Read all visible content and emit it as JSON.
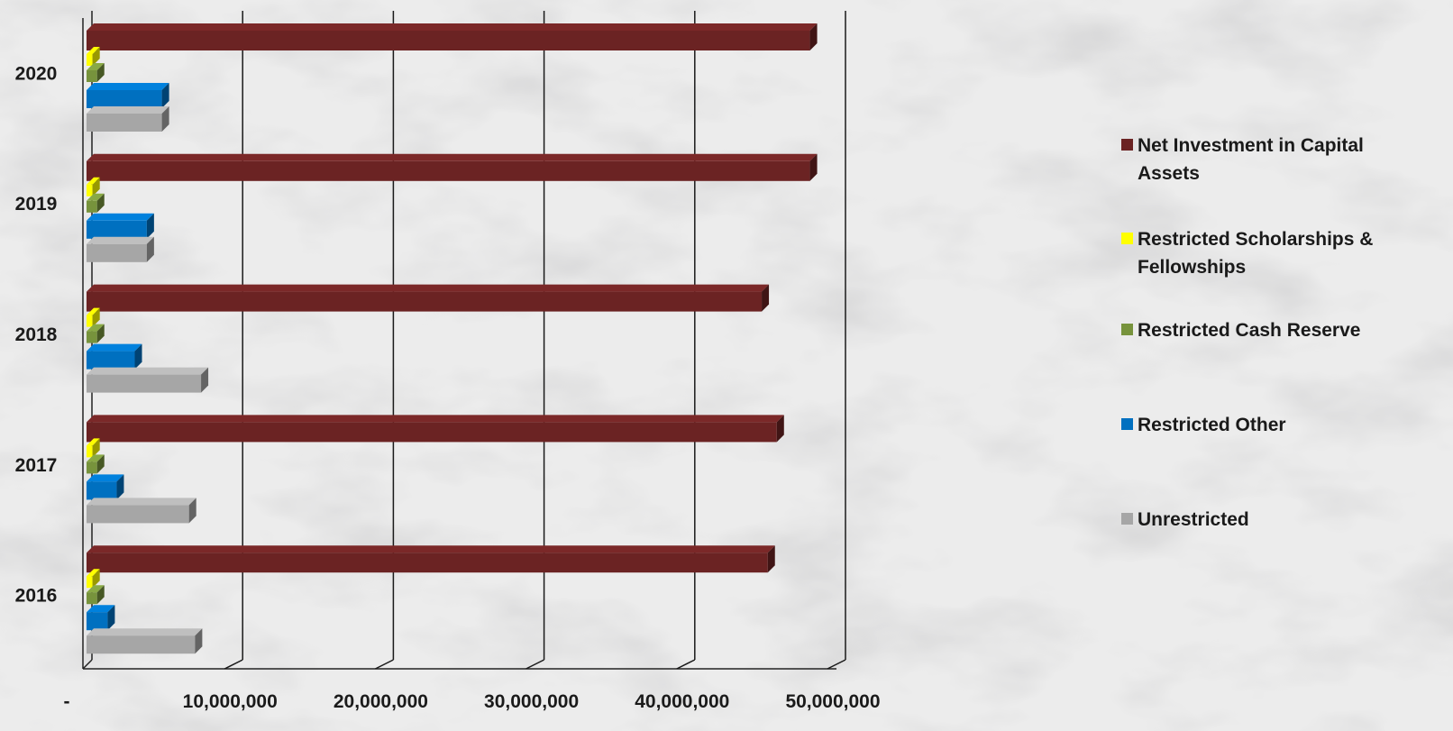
{
  "chart_data": {
    "type": "bar",
    "orientation": "horizontal",
    "three_d": true,
    "categories": [
      "2016",
      "2017",
      "2018",
      "2019",
      "2020"
    ],
    "series": [
      {
        "name": "Net Investment in Capital Assets",
        "color": "#6b2323",
        "values": [
          45200000,
          45800000,
          44800000,
          48000000,
          48000000
        ]
      },
      {
        "name": "Restricted Scholarships & Fellowships",
        "color": "#ffff00",
        "values": [
          400000,
          400000,
          400000,
          400000,
          400000
        ]
      },
      {
        "name": "Restricted Cash Reserve",
        "color": "#77933c",
        "values": [
          700000,
          700000,
          700000,
          700000,
          700000
        ]
      },
      {
        "name": "Restricted Other",
        "color": "#0070c0",
        "values": [
          1400000,
          2000000,
          3200000,
          4000000,
          5000000
        ]
      },
      {
        "name": "Unrestricted",
        "color": "#a6a6a6",
        "values": [
          7200000,
          6800000,
          7600000,
          4000000,
          5000000
        ]
      }
    ],
    "xlim": [
      0,
      50000000
    ],
    "xticks": [
      0,
      10000000,
      20000000,
      30000000,
      40000000,
      50000000
    ],
    "xtick_labels": [
      "-",
      "10,000,000",
      "20,000,000",
      "30,000,000",
      "40,000,000",
      "50,000,000"
    ],
    "xlabel": "",
    "ylabel": "",
    "grid": true,
    "legend_position": "right"
  }
}
